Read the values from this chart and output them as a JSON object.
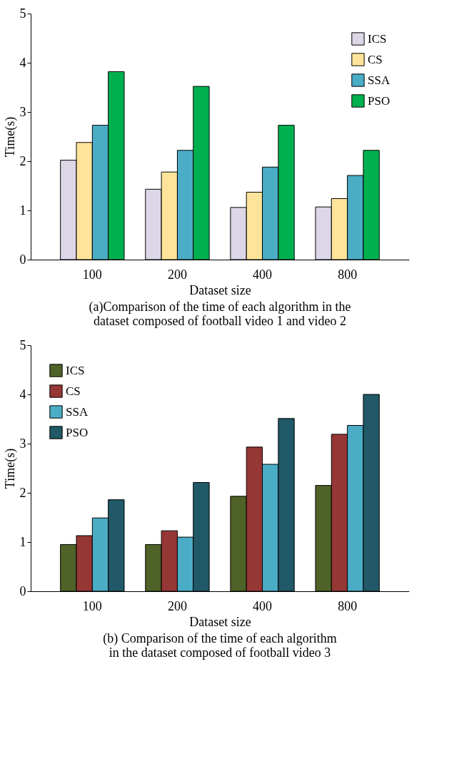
{
  "chart_data": [
    {
      "type": "bar",
      "xlabel": "Dataset size",
      "ylabel": "Time(s)",
      "categories": [
        "100",
        "200",
        "400",
        "800"
      ],
      "ylim": [
        0,
        5
      ],
      "yticks": [
        0,
        1,
        2,
        3,
        4,
        5
      ],
      "grid": false,
      "legend": "top right",
      "annotations": [
        "(a)Comparison of the time of each algorithm in the",
        "dataset composed of football video 1 and video 2"
      ],
      "series": [
        {
          "name": "ICS",
          "color": "#dcd6e6",
          "values": [
            2.02,
            1.43,
            1.06,
            1.07
          ]
        },
        {
          "name": "CS",
          "color": "#fde49a",
          "values": [
            2.38,
            1.78,
            1.37,
            1.24
          ]
        },
        {
          "name": "SSA",
          "color": "#4bacc6",
          "values": [
            2.73,
            2.22,
            1.88,
            1.71
          ]
        },
        {
          "name": "PSO",
          "color": "#00b050",
          "values": [
            3.82,
            3.52,
            2.73,
            2.22
          ]
        }
      ]
    },
    {
      "type": "bar",
      "xlabel": "Dataset size",
      "ylabel": "Time(s)",
      "categories": [
        "100",
        "200",
        "400",
        "800"
      ],
      "ylim": [
        0,
        5
      ],
      "yticks": [
        0,
        1,
        2,
        3,
        4,
        5
      ],
      "grid": false,
      "legend": "top left",
      "annotations": [
        "(b) Comparison of the time of each algorithm",
        "in the dataset composed of football video 3"
      ],
      "series": [
        {
          "name": "ICS",
          "color": "#4f6228",
          "values": [
            0.95,
            0.95,
            1.93,
            2.15
          ]
        },
        {
          "name": "CS",
          "color": "#953735",
          "values": [
            1.13,
            1.23,
            2.93,
            3.19
          ]
        },
        {
          "name": "SSA",
          "color": "#4bacc6",
          "values": [
            1.49,
            1.1,
            2.58,
            3.37
          ]
        },
        {
          "name": "PSO",
          "color": "#215968",
          "values": [
            1.86,
            2.21,
            3.51,
            4.0
          ]
        }
      ]
    }
  ]
}
